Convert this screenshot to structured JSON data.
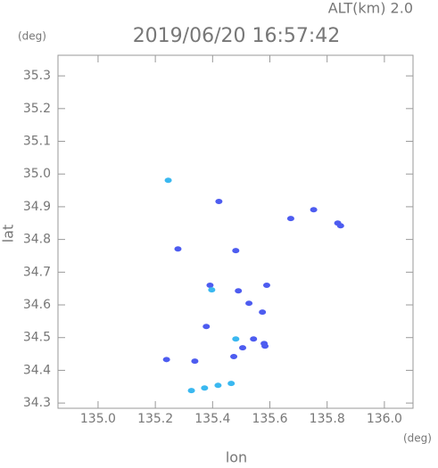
{
  "chart_data": {
    "type": "scatter",
    "top_label": "ALT(km) 2.0",
    "title": "2019/06/20 16:57:42",
    "y_unit": "(deg)",
    "x_unit": "(deg)",
    "xlabel": "lon",
    "ylabel": "lat",
    "xlim": [
      134.86,
      136.1
    ],
    "ylim": [
      34.284,
      35.363
    ],
    "xticks": [
      {
        "value": 135.0,
        "label": "135.0"
      },
      135.2,
      135.4,
      135.6,
      135.8,
      {
        "value": 136.0,
        "label": "136.0"
      }
    ],
    "yticks": [
      35.3,
      35.2,
      35.1,
      {
        "value": 35.0,
        "label": "35.0"
      },
      34.9,
      34.8,
      34.7,
      34.6,
      34.5,
      34.4,
      34.3
    ],
    "series": [
      {
        "color": "#4d5cf0",
        "x": [
          135.422,
          135.673,
          135.753,
          135.279,
          135.481,
          135.391,
          135.589,
          135.527,
          135.574,
          135.49,
          135.378,
          135.543,
          135.58,
          135.505,
          135.583,
          135.239,
          135.338,
          135.474,
          135.837,
          135.847
        ],
        "values": [
          34.916,
          34.864,
          34.891,
          34.771,
          34.766,
          34.66,
          34.66,
          34.605,
          34.578,
          34.643,
          34.534,
          34.496,
          34.482,
          34.469,
          34.474,
          34.433,
          34.428,
          34.442,
          34.85,
          34.842
        ]
      },
      {
        "color": "#3ab8f0",
        "x": [
          135.245,
          135.481,
          135.326,
          135.372,
          135.419,
          135.465,
          135.397
        ],
        "values": [
          34.981,
          34.496,
          34.338,
          34.346,
          34.354,
          34.36,
          34.646
        ]
      }
    ]
  }
}
